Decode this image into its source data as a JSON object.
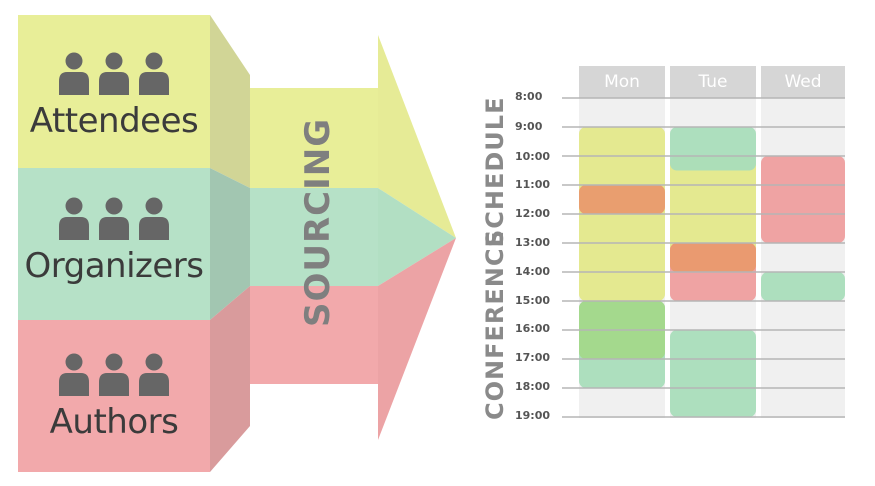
{
  "roles": [
    {
      "label": "Attendees",
      "color": "#e8ee98"
    },
    {
      "label": "Organizers",
      "color": "#b6e1c7"
    },
    {
      "label": "Authors",
      "color": "#f2a9ab"
    }
  ],
  "sourcing_label": "SOURCING",
  "schedule_title": {
    "line1": "CONFERENCE",
    "line2": "SCHEDULE"
  },
  "days": [
    "Mon",
    "Tue",
    "Wed"
  ],
  "times": [
    "8:00",
    "9:00",
    "10:00",
    "11:00",
    "12:00",
    "13:00",
    "14:00",
    "15:00",
    "16:00",
    "17:00",
    "18:00",
    "19:00"
  ],
  "sessions": [
    {
      "day": "Mon",
      "start": "9:00",
      "end": "15:00",
      "color": "#e3e88a"
    },
    {
      "day": "Mon",
      "start": "15:00",
      "end": "18:00",
      "color": "#a9ddbb"
    },
    {
      "day": "Mon",
      "start": "15:00",
      "end": "17:00",
      "color": "#a3d88a"
    },
    {
      "day": "Mon",
      "start": "11:00",
      "end": "12:00",
      "color": "#e99a6e"
    },
    {
      "day": "Tue",
      "start": "10:00",
      "end": "14:00",
      "color": "#e3e88a"
    },
    {
      "day": "Tue",
      "start": "9:00",
      "end": "10:30",
      "color": "#a9ddbb"
    },
    {
      "day": "Tue",
      "start": "13:00",
      "end": "15:00",
      "color": "#ee9e9e"
    },
    {
      "day": "Tue",
      "start": "13:00",
      "end": "14:00",
      "color": "#e99a6e"
    },
    {
      "day": "Tue",
      "start": "16:00",
      "end": "19:00",
      "color": "#a9ddbb"
    },
    {
      "day": "Wed",
      "start": "10:00",
      "end": "13:00",
      "color": "#ee9e9e"
    },
    {
      "day": "Wed",
      "start": "14:00",
      "end": "15:00",
      "color": "#a9ddbb"
    }
  ]
}
